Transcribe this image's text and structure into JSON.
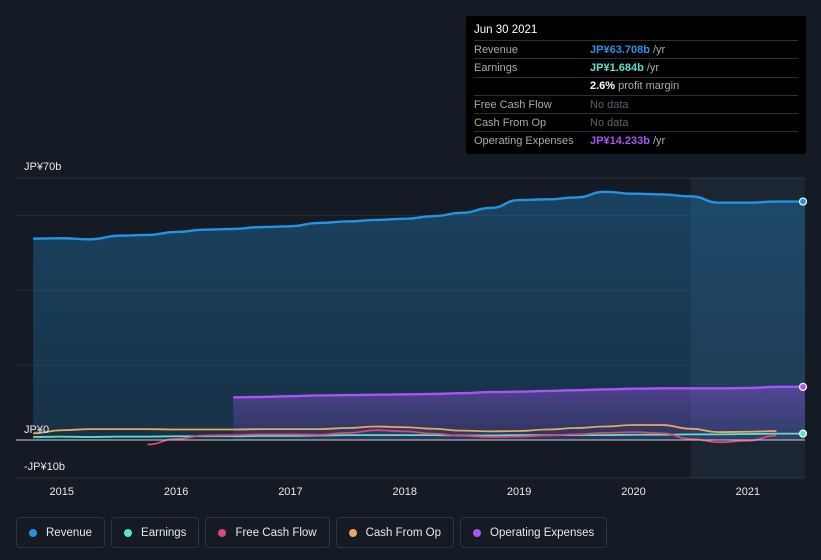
{
  "tooltip": {
    "date": "Jun 30 2021",
    "rows": [
      {
        "label": "Revenue",
        "value": "JP¥63.708b",
        "unit": "/yr",
        "color": "#2394e0"
      },
      {
        "label": "Earnings",
        "value": "JP¥1.684b",
        "unit": "/yr",
        "color": "#5ee0c8"
      },
      {
        "label": "",
        "value": "2.6%",
        "unit": "profit margin",
        "color": "#ffffff"
      },
      {
        "label": "Free Cash Flow",
        "value": "No data",
        "unit": "",
        "color": "#5c6169"
      },
      {
        "label": "Cash From Op",
        "value": "No data",
        "unit": "",
        "color": "#5c6169"
      },
      {
        "label": "Operating Expenses",
        "value": "JP¥14.233b",
        "unit": "/yr",
        "color": "#a855f7"
      }
    ]
  },
  "legend": [
    {
      "label": "Revenue",
      "color": "#2394e0"
    },
    {
      "label": "Earnings",
      "color": "#5ee0c8"
    },
    {
      "label": "Free Cash Flow",
      "color": "#d9487a"
    },
    {
      "label": "Cash From Op",
      "color": "#e8a95c"
    },
    {
      "label": "Operating Expenses",
      "color": "#a855f7"
    }
  ],
  "chart_data": {
    "type": "area",
    "y_tick_labels": [
      "JP¥70b",
      "JP¥0",
      "-JP¥10b"
    ],
    "ylim": [
      -10,
      70
    ],
    "x_tick_labels": [
      "2015",
      "2016",
      "2017",
      "2018",
      "2019",
      "2020",
      "2021"
    ],
    "xlim": [
      2014.6,
      2021.5
    ],
    "highlight_start": 2020.5,
    "series": [
      {
        "name": "Revenue",
        "color": "#2394e0",
        "fill": true,
        "x": [
          2014.75,
          2015.0,
          2015.25,
          2015.5,
          2015.75,
          2016.0,
          2016.25,
          2016.5,
          2016.75,
          2017.0,
          2017.25,
          2017.5,
          2017.75,
          2018.0,
          2018.25,
          2018.5,
          2018.75,
          2019.0,
          2019.25,
          2019.5,
          2019.75,
          2020.0,
          2020.25,
          2020.5,
          2020.75,
          2021.0,
          2021.25,
          2021.5
        ],
        "y": [
          53.8,
          53.9,
          53.6,
          54.6,
          54.8,
          55.6,
          56.2,
          56.4,
          56.9,
          57.1,
          58.0,
          58.4,
          58.8,
          59.1,
          59.8,
          60.7,
          62.0,
          64.1,
          64.3,
          64.8,
          66.3,
          65.8,
          65.6,
          65.1,
          63.4,
          63.4,
          63.7,
          63.7
        ]
      },
      {
        "name": "Operating Expenses",
        "color": "#a855f7",
        "fill": true,
        "x": [
          2016.5,
          2016.75,
          2017.0,
          2017.25,
          2017.5,
          2017.75,
          2018.0,
          2018.25,
          2018.5,
          2018.75,
          2019.0,
          2019.25,
          2019.5,
          2019.75,
          2020.0,
          2020.25,
          2020.5,
          2020.75,
          2021.0,
          2021.25,
          2021.5
        ],
        "y": [
          11.4,
          11.5,
          11.7,
          11.9,
          12.0,
          12.1,
          12.2,
          12.3,
          12.5,
          12.8,
          12.9,
          13.1,
          13.3,
          13.5,
          13.7,
          13.8,
          13.8,
          13.8,
          13.9,
          14.2,
          14.2
        ]
      },
      {
        "name": "Cash From Op",
        "color": "#e8a95c",
        "fill": false,
        "x": [
          2014.75,
          2015.0,
          2015.25,
          2015.5,
          2015.75,
          2016.0,
          2016.25,
          2016.5,
          2016.75,
          2017.0,
          2017.25,
          2017.5,
          2017.75,
          2018.0,
          2018.25,
          2018.5,
          2018.75,
          2019.0,
          2019.25,
          2019.5,
          2019.75,
          2020.0,
          2020.25,
          2020.5,
          2020.75,
          2021.0,
          2021.25
        ],
        "y": [
          1.8,
          2.6,
          2.9,
          2.9,
          2.9,
          2.8,
          2.8,
          2.8,
          2.9,
          2.9,
          2.9,
          3.2,
          3.6,
          3.4,
          3.0,
          2.5,
          2.3,
          2.4,
          2.8,
          3.2,
          3.6,
          4.0,
          4.0,
          3.0,
          2.1,
          2.2,
          2.4
        ]
      },
      {
        "name": "Earnings",
        "color": "#5ee0c8",
        "fill": false,
        "x": [
          2014.75,
          2015.0,
          2015.25,
          2015.5,
          2015.75,
          2016.0,
          2016.25,
          2016.5,
          2016.75,
          2017.0,
          2017.25,
          2017.5,
          2017.75,
          2018.0,
          2018.25,
          2018.5,
          2018.75,
          2019.0,
          2019.25,
          2019.5,
          2019.75,
          2020.0,
          2020.25,
          2020.5,
          2020.75,
          2021.0,
          2021.25,
          2021.5
        ],
        "y": [
          0.8,
          0.9,
          0.8,
          0.9,
          0.9,
          1.0,
          1.0,
          1.0,
          1.1,
          1.1,
          1.2,
          1.3,
          1.3,
          1.3,
          1.3,
          1.2,
          1.2,
          1.3,
          1.3,
          1.3,
          1.3,
          1.4,
          1.4,
          1.5,
          1.5,
          1.6,
          1.7,
          1.7
        ]
      },
      {
        "name": "Free Cash Flow",
        "color": "#d9487a",
        "fill": false,
        "x": [
          2015.75,
          2016.0,
          2016.25,
          2016.5,
          2016.75,
          2017.0,
          2017.25,
          2017.5,
          2017.75,
          2018.0,
          2018.25,
          2018.5,
          2018.75,
          2019.0,
          2019.25,
          2019.5,
          2019.75,
          2020.0,
          2020.25,
          2020.5,
          2020.75,
          2021.0,
          2021.25
        ],
        "y": [
          -1.2,
          0.3,
          1.2,
          1.3,
          1.5,
          1.5,
          1.4,
          1.9,
          2.6,
          2.3,
          1.7,
          1.1,
          0.8,
          0.9,
          1.2,
          1.5,
          1.9,
          2.1,
          1.8,
          0.3,
          -0.6,
          -0.2,
          1.2
        ]
      }
    ]
  }
}
